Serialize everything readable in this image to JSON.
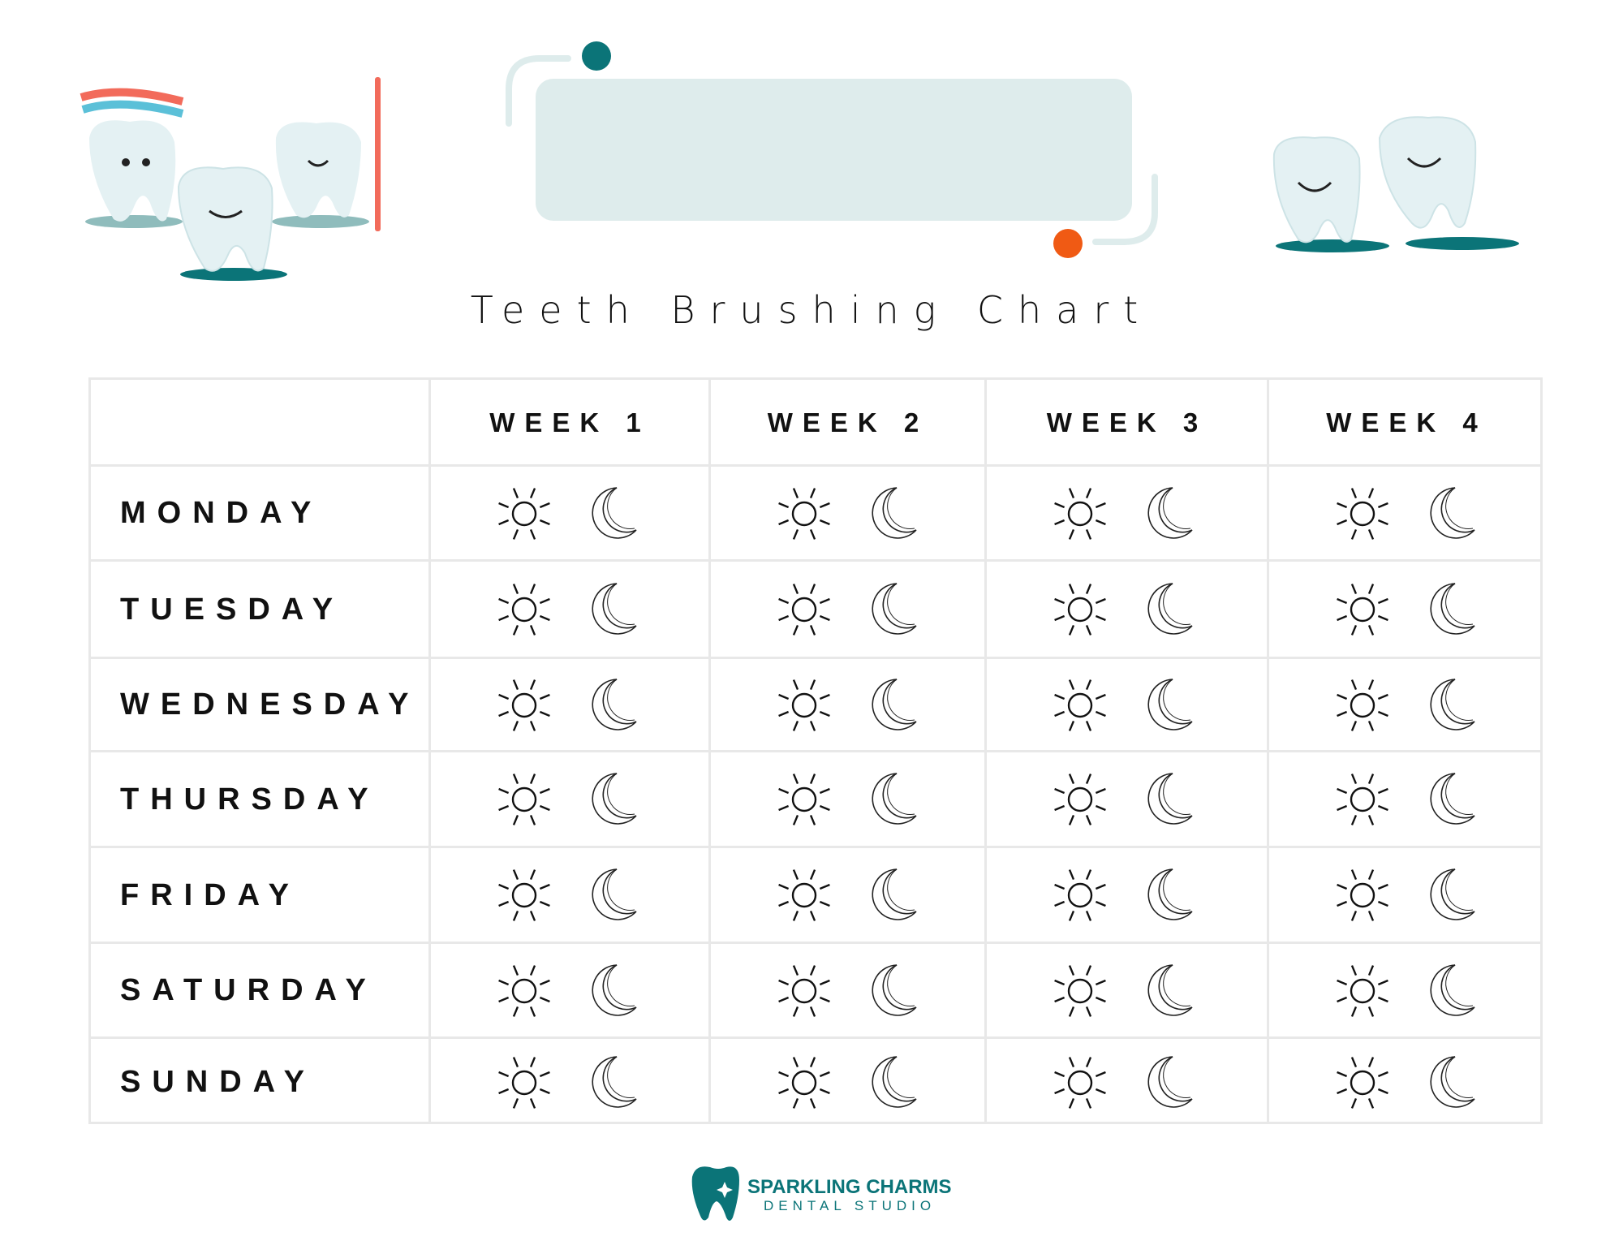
{
  "title": "Teeth Brushing Chart",
  "weeks": [
    "WEEK 1",
    "WEEK 2",
    "WEEK 3",
    "WEEK 4"
  ],
  "days": [
    "MONDAY",
    "TUESDAY",
    "WEDNESDAY",
    "THURSDAY",
    "FRIDAY",
    "SATURDAY",
    "SUNDAY"
  ],
  "cell_icons": [
    "sun-icon",
    "moon-icon"
  ],
  "logo": {
    "name": "SPARKLING CHARMS",
    "sub": "DENTAL STUDIO"
  },
  "colors": {
    "teal": "#0b7478",
    "banner": "#deecec",
    "orange": "#f05a14",
    "tooth": "#e4f1f3"
  }
}
